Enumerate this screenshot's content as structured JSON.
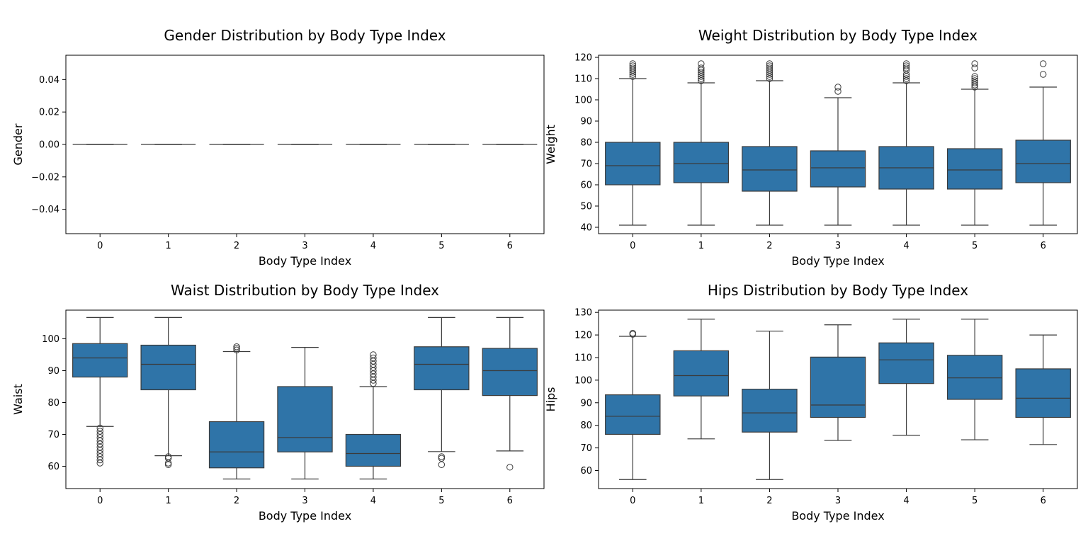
{
  "chart_data": [
    {
      "type": "box",
      "title": "Gender Distribution by Body Type Index",
      "xlabel": "Body Type Index",
      "ylabel": "Gender",
      "categories": [
        "0",
        "1",
        "2",
        "3",
        "4",
        "5",
        "6"
      ],
      "ylim": [
        -0.055,
        0.055
      ],
      "yticks": [
        -0.04,
        -0.02,
        0.0,
        0.02,
        0.04
      ],
      "yticklabels": [
        "−0.04",
        "−0.02",
        "0.00",
        "0.02",
        "0.04"
      ],
      "color": "#2f74a8",
      "boxes": [
        {
          "min": 0,
          "q1": 0,
          "median": 0,
          "q3": 0,
          "max": 0,
          "fliers": []
        },
        {
          "min": 0,
          "q1": 0,
          "median": 0,
          "q3": 0,
          "max": 0,
          "fliers": []
        },
        {
          "min": 0,
          "q1": 0,
          "median": 0,
          "q3": 0,
          "max": 0,
          "fliers": []
        },
        {
          "min": 0,
          "q1": 0,
          "median": 0,
          "q3": 0,
          "max": 0,
          "fliers": []
        },
        {
          "min": 0,
          "q1": 0,
          "median": 0,
          "q3": 0,
          "max": 0,
          "fliers": []
        },
        {
          "min": 0,
          "q1": 0,
          "median": 0,
          "q3": 0,
          "max": 0,
          "fliers": []
        },
        {
          "min": 0,
          "q1": 0,
          "median": 0,
          "q3": 0,
          "max": 0,
          "fliers": []
        }
      ]
    },
    {
      "type": "box",
      "title": "Weight Distribution by Body Type Index",
      "xlabel": "Body Type Index",
      "ylabel": "Weight",
      "categories": [
        "0",
        "1",
        "2",
        "3",
        "4",
        "5",
        "6"
      ],
      "ylim": [
        37,
        121
      ],
      "yticks": [
        40,
        50,
        60,
        70,
        80,
        90,
        100,
        110,
        120
      ],
      "yticklabels": [
        "40",
        "50",
        "60",
        "70",
        "80",
        "90",
        "100",
        "110",
        "120"
      ],
      "color": "#2f74a8",
      "boxes": [
        {
          "min": 41,
          "q1": 60,
          "median": 69,
          "q3": 80,
          "max": 110,
          "fliers": [
            111,
            112,
            113,
            114,
            115,
            116,
            117
          ]
        },
        {
          "min": 41,
          "q1": 61,
          "median": 70,
          "q3": 80,
          "max": 108,
          "fliers": [
            109,
            110,
            111,
            112,
            113,
            114,
            115,
            117
          ]
        },
        {
          "min": 41,
          "q1": 57,
          "median": 67,
          "q3": 78,
          "max": 109,
          "fliers": [
            110,
            111,
            112,
            113,
            114,
            115,
            116,
            117
          ]
        },
        {
          "min": 41,
          "q1": 59,
          "median": 68,
          "q3": 76,
          "max": 101,
          "fliers": [
            104,
            106
          ]
        },
        {
          "min": 41,
          "q1": 58,
          "median": 68,
          "q3": 78,
          "max": 108,
          "fliers": [
            109,
            110,
            111,
            112,
            114,
            115,
            116,
            117
          ]
        },
        {
          "min": 41,
          "q1": 58,
          "median": 67,
          "q3": 77,
          "max": 105,
          "fliers": [
            106,
            107,
            108,
            109,
            110,
            111,
            115,
            117
          ]
        },
        {
          "min": 41,
          "q1": 61,
          "median": 70,
          "q3": 81,
          "max": 106,
          "fliers": [
            112,
            117
          ]
        }
      ]
    },
    {
      "type": "box",
      "title": "Waist Distribution by Body Type Index",
      "xlabel": "Body Type Index",
      "ylabel": "Waist",
      "categories": [
        "0",
        "1",
        "2",
        "3",
        "4",
        "5",
        "6"
      ],
      "ylim": [
        53,
        109
      ],
      "yticks": [
        60,
        70,
        80,
        90,
        100
      ],
      "yticklabels": [
        "60",
        "70",
        "80",
        "90",
        "100"
      ],
      "color": "#2f74a8",
      "boxes": [
        {
          "min": 72.5,
          "q1": 88,
          "median": 94,
          "q3": 98.5,
          "max": 106.7,
          "fliers": [
            61,
            62,
            63,
            64,
            65,
            66,
            67,
            68,
            69,
            70,
            71,
            72
          ]
        },
        {
          "min": 63.3,
          "q1": 84,
          "median": 92,
          "q3": 98,
          "max": 106.7,
          "fliers": [
            60.5,
            61,
            62.5,
            63
          ]
        },
        {
          "min": 56,
          "q1": 59.5,
          "median": 64.5,
          "q3": 74,
          "max": 96,
          "fliers": [
            96.5,
            97,
            97.5
          ]
        },
        {
          "min": 56,
          "q1": 64.5,
          "median": 69,
          "q3": 85,
          "max": 97.3,
          "fliers": []
        },
        {
          "min": 56,
          "q1": 60,
          "median": 64,
          "q3": 70,
          "max": 85,
          "fliers": [
            86,
            87,
            88,
            89,
            90,
            91,
            92,
            93,
            94,
            95
          ]
        },
        {
          "min": 64.6,
          "q1": 84,
          "median": 92,
          "q3": 97.5,
          "max": 106.7,
          "fliers": [
            60.5,
            62.5,
            63
          ]
        },
        {
          "min": 64.8,
          "q1": 82.2,
          "median": 90,
          "q3": 97,
          "max": 106.7,
          "fliers": [
            59.7
          ]
        }
      ]
    },
    {
      "type": "box",
      "title": "Hips Distribution by Body Type Index",
      "xlabel": "Body Type Index",
      "ylabel": "Hips",
      "categories": [
        "0",
        "1",
        "2",
        "3",
        "4",
        "5",
        "6"
      ],
      "ylim": [
        52,
        131
      ],
      "yticks": [
        60,
        70,
        80,
        90,
        100,
        110,
        120,
        130
      ],
      "yticklabels": [
        "60",
        "70",
        "80",
        "90",
        "100",
        "110",
        "120",
        "130"
      ],
      "color": "#2f74a8",
      "boxes": [
        {
          "min": 56,
          "q1": 76,
          "median": 84,
          "q3": 93.5,
          "max": 119.4,
          "fliers": [
            120.3,
            120.8
          ]
        },
        {
          "min": 74,
          "q1": 93,
          "median": 102,
          "q3": 113,
          "max": 127,
          "fliers": []
        },
        {
          "min": 56,
          "q1": 77,
          "median": 85.5,
          "q3": 96,
          "max": 121.7,
          "fliers": []
        },
        {
          "min": 73.3,
          "q1": 83.5,
          "median": 89,
          "q3": 110.2,
          "max": 124.5,
          "fliers": []
        },
        {
          "min": 75.6,
          "q1": 98.5,
          "median": 109,
          "q3": 116.5,
          "max": 127,
          "fliers": []
        },
        {
          "min": 73.6,
          "q1": 91.5,
          "median": 101,
          "q3": 111,
          "max": 127,
          "fliers": []
        },
        {
          "min": 71.5,
          "q1": 83.5,
          "median": 92,
          "q3": 105,
          "max": 120,
          "fliers": []
        }
      ]
    }
  ]
}
